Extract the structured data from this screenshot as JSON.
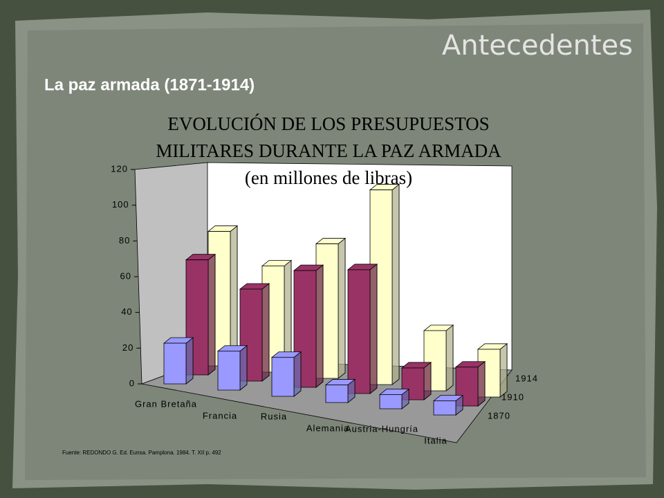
{
  "slide": {
    "heading": "Antecedentes",
    "subheading": "La paz armada (1871-1914)",
    "source": "Fuente: REDONDO G. Ed. Eunsa. Pamplona. 1984. T. XII p. 492"
  },
  "chart_data": {
    "type": "bar3d",
    "title_lines": [
      "EVOLUCIÓN DE LOS PRESUPUESTOS",
      "MILITARES DURANTE LA PAZ ARMADA",
      "(en millones de libras)"
    ],
    "categories": [
      "Gran Bretaña",
      "Francia",
      "Rusia",
      "Alemania",
      "Austria-Hungría",
      "Italia"
    ],
    "series": [
      {
        "name": "1870",
        "color": "#9999ff",
        "values": [
          23,
          22,
          22,
          10,
          8,
          8
        ]
      },
      {
        "name": "1910",
        "color": "#993366",
        "values": [
          65,
          52,
          66,
          70,
          18,
          22
        ]
      },
      {
        "name": "1914",
        "color": "#ffffcc",
        "values": [
          76,
          60,
          76,
          110,
          34,
          27
        ]
      }
    ],
    "ylim": [
      0,
      120
    ],
    "yticks": [
      0,
      20,
      40,
      60,
      80,
      100,
      120
    ]
  }
}
